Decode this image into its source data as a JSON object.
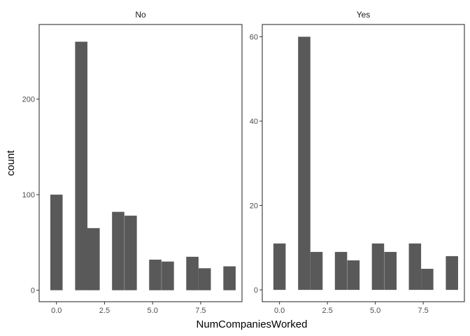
{
  "chart_data": {
    "type": "bar",
    "xlabel": "NumCompaniesWorked",
    "ylabel": "count",
    "bar_color": "#595959",
    "panel_border_color": "#333333",
    "x_ticks": [
      {
        "value": 0,
        "label": "0.0"
      },
      {
        "value": 2.5,
        "label": "2.5"
      },
      {
        "value": 5,
        "label": "5.0"
      },
      {
        "value": 7.5,
        "label": "7.5"
      }
    ],
    "xlim": [
      -0.9,
      9.65
    ],
    "bin_width": 0.64,
    "panels": [
      {
        "name": "No",
        "ylim": [
          -12,
          278
        ],
        "y_ticks": [
          {
            "value": 0,
            "label": "0"
          },
          {
            "value": 100,
            "label": "100"
          },
          {
            "value": 200,
            "label": "200"
          }
        ],
        "bins": [
          {
            "x": 0,
            "count": 100
          },
          {
            "x": 1.29,
            "count": 260
          },
          {
            "x": 1.93,
            "count": 65
          },
          {
            "x": 3.21,
            "count": 82
          },
          {
            "x": 3.86,
            "count": 78
          },
          {
            "x": 5.14,
            "count": 32
          },
          {
            "x": 5.79,
            "count": 30
          },
          {
            "x": 7.07,
            "count": 35
          },
          {
            "x": 7.71,
            "count": 23
          },
          {
            "x": 9.0,
            "count": 25
          }
        ]
      },
      {
        "name": "Yes",
        "ylim": [
          -2.8,
          62.9
        ],
        "y_ticks": [
          {
            "value": 0,
            "label": "0"
          },
          {
            "value": 20,
            "label": "20"
          },
          {
            "value": 40,
            "label": "40"
          },
          {
            "value": 60,
            "label": "60"
          }
        ],
        "bins": [
          {
            "x": 0,
            "count": 11
          },
          {
            "x": 1.29,
            "count": 60
          },
          {
            "x": 1.93,
            "count": 9
          },
          {
            "x": 3.21,
            "count": 9
          },
          {
            "x": 3.86,
            "count": 7
          },
          {
            "x": 5.14,
            "count": 11
          },
          {
            "x": 5.79,
            "count": 9
          },
          {
            "x": 7.07,
            "count": 11
          },
          {
            "x": 7.71,
            "count": 5
          },
          {
            "x": 9.0,
            "count": 8
          }
        ]
      }
    ]
  }
}
